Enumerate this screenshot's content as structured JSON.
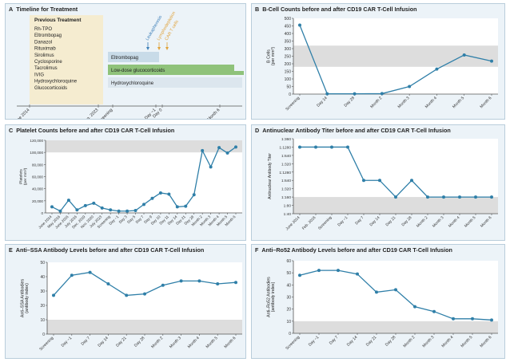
{
  "figure": {
    "background": "#ecf3f8",
    "line_color": "#2f7fa8",
    "normal_band_color": "#dddddd"
  },
  "panel_a": {
    "label": "A",
    "title": "Timeline for Treatment",
    "previous_treatment": {
      "heading": "Previous Treatment",
      "items": [
        "Rh-TPO",
        "Eltrombopag",
        "Danazol",
        "Rituximab",
        "Sirolimus",
        "Cyclosporine",
        "Tacrolimus",
        "IVIG",
        "Hydroxychloroquine",
        "Glucocorticoids"
      ]
    },
    "timeline_labels": [
      "June 2014",
      "Aug. 2023",
      "Screening",
      "Day −1",
      "Day 0",
      "Month 6"
    ],
    "annotations": [
      "Leukapheresis",
      "Lymphodepletion",
      "CAR T cells"
    ],
    "bars": [
      {
        "label": "Eltrombopag",
        "color": "#c8dbe8"
      },
      {
        "label": "Low-dose glucocorticoids",
        "color": "#8fc27a"
      },
      {
        "label": "Hydroxychloroquine",
        "color": "#dce6ee"
      }
    ],
    "annotation_colors": [
      "#3d7fb8",
      "#e0a23a",
      "#e0a23a"
    ]
  },
  "chart_data": [
    {
      "panel": "B",
      "type": "line",
      "title": "B-Cell Counts before and after CD19 CAR T-Cell Infusion",
      "ylabel": "B Cells (per mm³)",
      "ylim": [
        0,
        500
      ],
      "yticks": [
        "0",
        "50",
        "100",
        "150",
        "200",
        "250",
        "300",
        "350",
        "400",
        "450",
        "500"
      ],
      "normal_range": [
        180,
        320
      ],
      "categories": [
        "Screening",
        "Day 14",
        "Day 28",
        "Month 2",
        "Month 3",
        "Month 4",
        "Month 5",
        "Month 6"
      ],
      "values": [
        455,
        2,
        2,
        3,
        50,
        165,
        258,
        218
      ]
    },
    {
      "panel": "C",
      "type": "line",
      "title": "Platelet Counts before and after CD19 CAR T-Cell Infusion",
      "ylabel": "Platelets (per mm³)",
      "ylim": [
        0,
        120000
      ],
      "yticks": [
        "0",
        "20,000",
        "40,000",
        "60,000",
        "80,000",
        "100,000",
        "120,000"
      ],
      "normal_range": [
        100000,
        120000
      ],
      "categories": [
        "June 2014",
        "May 2016",
        "June 2016",
        "July 2016",
        "Dec. 2019",
        "Nov. 2020",
        "July 2023",
        "Screening",
        "Day −1",
        "Day 3",
        "Day 5",
        "Day 7",
        "Day 9",
        "Day 10",
        "Day 11",
        "Day 14",
        "Day 21",
        "Day 28",
        "Month 2",
        "Month 3",
        "Month 4",
        "Month 5",
        "Month 6"
      ],
      "values": [
        10000,
        3000,
        21000,
        5000,
        12000,
        16000,
        8000,
        5000,
        3000,
        3000,
        4000,
        14000,
        24000,
        33000,
        31000,
        10000,
        11000,
        30000,
        103000,
        76000,
        108000,
        99000,
        109000
      ]
    },
    {
      "panel": "D",
      "type": "line",
      "title": "Antinuclear Antibody Titer before and after CD19 CAR T-Cell Infusion",
      "ylabel": "Antinuclear Antibody Titer",
      "ylim": [
        0,
        9
      ],
      "yticks": [
        "1:40",
        "1:80",
        "1:160",
        "1:320",
        "1:640",
        "1:1280",
        "1:320",
        "1:640",
        "1:1280",
        "1:360"
      ],
      "normal_range": [
        0,
        2
      ],
      "categories": [
        "June 2014",
        "Feb. 2016",
        "Screening",
        "Day −1",
        "Day 7",
        "Day 14",
        "Day 21",
        "Day 28",
        "Month 2",
        "Month 3",
        "Month 4",
        "Month 5",
        "Month 6"
      ],
      "values": [
        8,
        8,
        8,
        8,
        4,
        4,
        2,
        4,
        2,
        2,
        2,
        2,
        2
      ]
    },
    {
      "panel": "E",
      "type": "line",
      "title": "Anti–SSA Antibody Levels before and after CD19 CAR T-Cell Infusion",
      "ylabel": "Anti–SSA Antibodies (antibody index)",
      "ylim": [
        0,
        50
      ],
      "yticks": [
        "0",
        "10",
        "20",
        "30",
        "40",
        "50"
      ],
      "normal_range": [
        0,
        10
      ],
      "categories": [
        "Screening",
        "Day −1",
        "Day 7",
        "Day 14",
        "Day 21",
        "Day 28",
        "Month 2",
        "Month 3",
        "Month 4",
        "Month 5",
        "Month 6"
      ],
      "values": [
        27,
        41,
        43,
        35,
        27,
        28,
        34,
        37,
        37,
        35,
        36
      ]
    },
    {
      "panel": "F",
      "type": "line",
      "title": "Anti–Ro52 Antibody Levels before and after CD19 CAR T-Cell Infusion",
      "ylabel": "Anti–Ro52 Antibodies (antibody index)",
      "ylim": [
        0,
        60
      ],
      "yticks": [
        "0",
        "10",
        "20",
        "30",
        "40",
        "50",
        "60"
      ],
      "normal_range": [
        0,
        10
      ],
      "categories": [
        "Screening",
        "Day −1",
        "Day 7",
        "Day 14",
        "Day 21",
        "Day 28",
        "Month 2",
        "Month 3",
        "Month 4",
        "Month 5",
        "Month 6"
      ],
      "values": [
        48,
        52,
        52,
        49,
        34,
        36,
        22,
        18,
        12,
        12,
        11
      ]
    }
  ]
}
